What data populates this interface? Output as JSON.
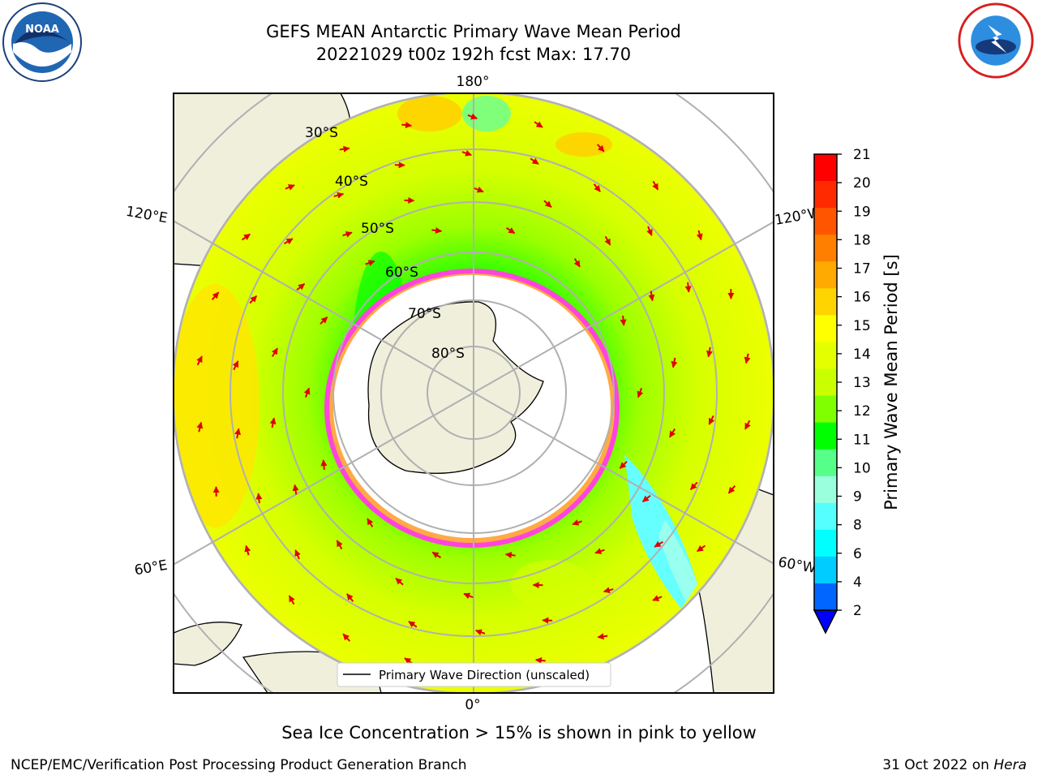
{
  "header": {
    "title_line1": "GEFS MEAN Antarctic Primary Wave Mean Period",
    "title_line2": "20221029 t00z 192h fcst   Max: 17.70"
  },
  "logos": {
    "left": "noaa-logo",
    "right": "nws-logo"
  },
  "map": {
    "projection": "south-polar-stereographic",
    "longitude_labels": [
      {
        "text": "180°",
        "pos": "top"
      },
      {
        "text": "120°E",
        "pos": "upper-left"
      },
      {
        "text": "120°W",
        "pos": "upper-right"
      },
      {
        "text": "60°E",
        "pos": "lower-left"
      },
      {
        "text": "60°W",
        "pos": "lower-right"
      },
      {
        "text": "0°",
        "pos": "bottom"
      }
    ],
    "latitude_labels": [
      "30°S",
      "40°S",
      "50°S",
      "60°S",
      "70°S",
      "80°S"
    ],
    "legend_label": "Primary Wave Direction (unscaled)"
  },
  "colorbar": {
    "label": "Primary Wave Mean Period [s]",
    "ticks": [
      "21",
      "20",
      "19",
      "18",
      "17",
      "16",
      "15",
      "14",
      "13",
      "12",
      "11",
      "10",
      "9",
      "8",
      "6",
      "4",
      "2"
    ],
    "colors": [
      "#ff0000",
      "#ff2a00",
      "#ff5500",
      "#ff8000",
      "#ffaa00",
      "#ffd400",
      "#ffff00",
      "#e4ff00",
      "#caff00",
      "#80ff00",
      "#00ff00",
      "#55ff88",
      "#99ffdd",
      "#55ffff",
      "#00ffff",
      "#00ccff",
      "#0066ff"
    ],
    "extend_color": "#0000ff"
  },
  "chart_data": {
    "type": "heatmap",
    "title": "GEFS MEAN Antarctic Primary Wave Mean Period",
    "subtitle": "20221029 t00z 192h fcst   Max: 17.70",
    "variable": "Primary Wave Mean Period [s]",
    "max_value": 17.7,
    "colorbar_range": [
      2,
      21
    ],
    "overlay": "Primary Wave Direction (unscaled)"
  },
  "notes": {
    "sea_ice": "Sea Ice Concentration > 15% is shown in pink to yellow"
  },
  "footer": {
    "left": "NCEP/EMC/Verification Post Processing Product Generation Branch",
    "right_prefix": "31 Oct 2022 on ",
    "right_host": "Hera"
  }
}
